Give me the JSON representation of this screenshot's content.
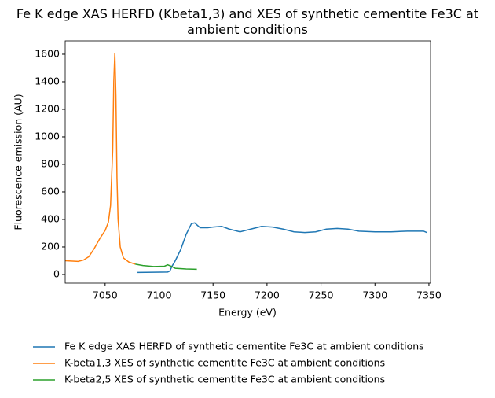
{
  "chart_data": {
    "type": "line",
    "title": "Fe K edge XAS HERFD (Kbeta1,3) and XES of synthetic cementite Fe3C at ambient conditions",
    "xlabel": "Energy (eV)",
    "ylabel": "Fluorescence emission (AU)",
    "xlim": [
      7013,
      7351.5
    ],
    "ylim": [
      -63,
      1697
    ],
    "xticks": [
      7050,
      7100,
      7150,
      7200,
      7250,
      7300,
      7350
    ],
    "yticks": [
      0,
      200,
      400,
      600,
      800,
      1000,
      1200,
      1400,
      1600
    ],
    "legend": "below",
    "series": [
      {
        "name": "Fe K edge XAS HERFD of synthetic cementite Fe3C at ambient conditions",
        "color": "#1f77b4",
        "x": [
          7080,
          7095,
          7108,
          7110,
          7112,
          7115,
          7120,
          7125,
          7130,
          7133,
          7138,
          7145,
          7150,
          7158,
          7165,
          7175,
          7185,
          7195,
          7205,
          7215,
          7225,
          7235,
          7245,
          7255,
          7265,
          7275,
          7285,
          7300,
          7315,
          7330,
          7345,
          7348
        ],
        "values": [
          15,
          16,
          18,
          25,
          60,
          100,
          180,
          290,
          370,
          375,
          340,
          340,
          345,
          350,
          330,
          310,
          330,
          350,
          345,
          330,
          310,
          305,
          310,
          330,
          335,
          330,
          315,
          310,
          310,
          315,
          315,
          305
        ]
      },
      {
        "name": "K-beta1,3 XES of synthetic cementite Fe3C at ambient conditions",
        "color": "#ff7f0e",
        "x": [
          7013,
          7020,
          7025,
          7030,
          7035,
          7040,
          7045,
          7050,
          7053,
          7055,
          7057,
          7058,
          7059,
          7060,
          7061,
          7062,
          7064,
          7067,
          7072,
          7078
        ],
        "values": [
          100,
          97,
          95,
          105,
          130,
          190,
          260,
          320,
          380,
          500,
          900,
          1400,
          1610,
          1300,
          700,
          400,
          200,
          120,
          90,
          75
        ]
      },
      {
        "name": "K-beta2,5 XES of synthetic cementite Fe3C at ambient conditions",
        "color": "#2ca02c",
        "x": [
          7078,
          7085,
          7095,
          7105,
          7108,
          7111,
          7115,
          7125,
          7135
        ],
        "values": [
          75,
          65,
          58,
          60,
          70,
          60,
          45,
          40,
          38
        ]
      }
    ]
  }
}
